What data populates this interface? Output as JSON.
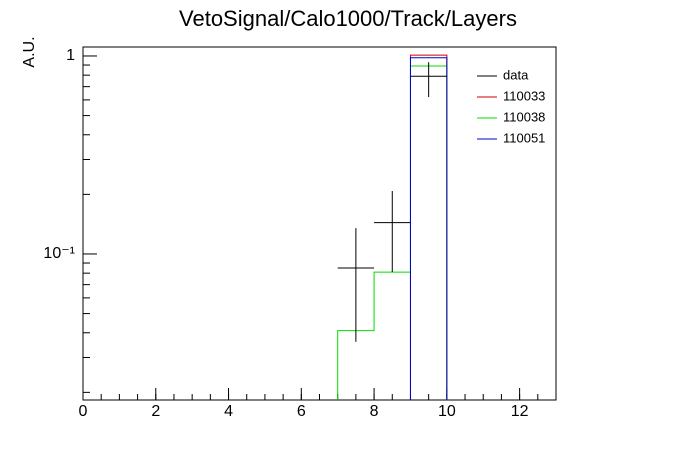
{
  "chart_data": {
    "type": "histogram",
    "title": "VetoSignal/Calo1000/Track/Layers",
    "y_label": "A.U.",
    "log_y": true,
    "xlim": [
      0,
      13
    ],
    "xticks": [
      0,
      2,
      4,
      6,
      8,
      10,
      12
    ],
    "ylim": [
      0.0183,
      1.11
    ],
    "yticks": [
      1,
      {
        "value": 0.1,
        "label": "10⁻¹"
      }
    ],
    "bins": [
      7,
      8,
      9,
      10
    ],
    "legend": "upper right",
    "data": {
      "name": "data",
      "color": "#000000",
      "values": [
        0.085,
        0.144,
        0.79
      ],
      "upper": [
        0.135,
        0.208,
        0.93
      ],
      "lower": [
        0.036,
        0.081,
        0.62
      ]
    },
    "series": [
      {
        "name": "110033",
        "color": "#cc0000",
        "values": [
          null,
          null,
          1.01
        ]
      },
      {
        "name": "110038",
        "color": "#00dd00",
        "values": [
          0.041,
          0.081,
          0.89
        ]
      },
      {
        "name": "110051",
        "color": "#0000cc",
        "values": [
          null,
          null,
          0.98
        ]
      }
    ]
  }
}
